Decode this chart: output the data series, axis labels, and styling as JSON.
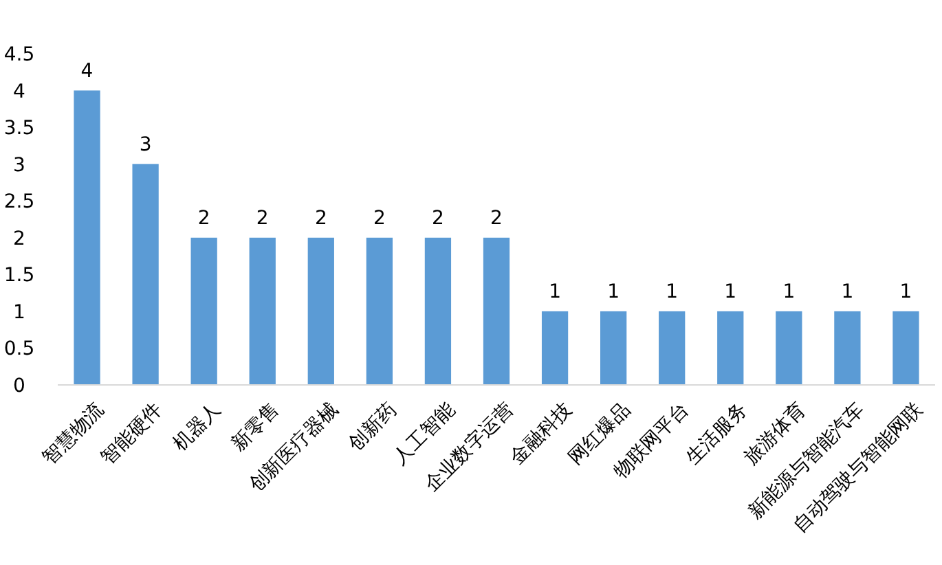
{
  "chart_data": {
    "type": "bar",
    "categories": [
      "智慧物流",
      "智能硬件",
      "机器人",
      "新零售",
      "创新医疗器械",
      "创新药",
      "人工智能",
      "企业数字运营",
      "金融科技",
      "网红爆品",
      "物联网平台",
      "生活服务",
      "旅游体育",
      "新能源与智能汽车",
      "自动驾驶与智能网联"
    ],
    "values": [
      4,
      3,
      2,
      2,
      2,
      2,
      2,
      2,
      1,
      1,
      1,
      1,
      1,
      1,
      1
    ],
    "color": "#5b9bd5",
    "ylim": [
      0,
      4.5
    ],
    "yticks": [
      0,
      0.5,
      1,
      1.5,
      2,
      2.5,
      3,
      3.5,
      4,
      4.5
    ],
    "data_labels": true,
    "grid": false
  }
}
